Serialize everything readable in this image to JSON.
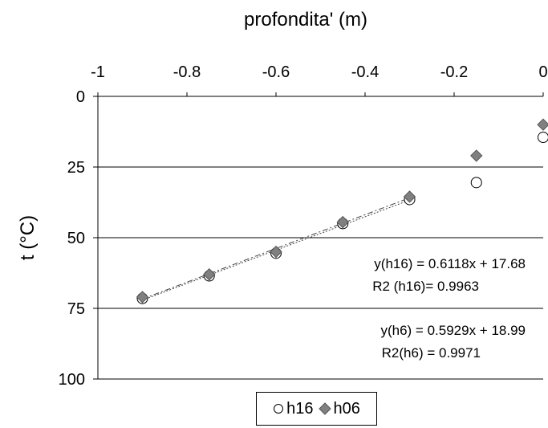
{
  "chart_data": {
    "type": "scatter",
    "title": "",
    "xlabel": "profondita' (m)",
    "ylabel": "t (°C)",
    "xlim": [
      -1,
      0
    ],
    "ylim": [
      0,
      100
    ],
    "y_inverted": true,
    "x_axis_position": "top",
    "x_ticks": [
      "-1",
      "-0.8",
      "-0.6",
      "-0.4",
      "-0.2",
      "0"
    ],
    "y_ticks": [
      "0",
      "25",
      "50",
      "75",
      "100"
    ],
    "grid": "horizontal",
    "legend_position": "bottom",
    "series": [
      {
        "name": "h16",
        "marker": "circle-open",
        "color": "#000000",
        "x": [
          -0.9,
          -0.75,
          -0.6,
          -0.45,
          -0.3,
          -0.15,
          0
        ],
        "y": [
          71.5,
          63.5,
          55.5,
          45,
          36.5,
          30.5,
          14.5
        ]
      },
      {
        "name": "h06",
        "marker": "diamond",
        "color": "#808080",
        "x": [
          -0.9,
          -0.75,
          -0.6,
          -0.45,
          -0.3,
          -0.15,
          0
        ],
        "y": [
          71,
          63,
          55,
          44.5,
          35.5,
          21,
          10
        ]
      }
    ],
    "trendlines": [
      {
        "series": "h16",
        "equation": "y(h16) = 0.6118x + 17.68",
        "r2": "R2 (h16)= 0.9963",
        "slope": 0.6118,
        "intercept": 17.68
      },
      {
        "series": "h06",
        "equation": "y(h6) = 0.5929x + 18.99",
        "r2": "R2(h6) = 0.9971",
        "slope": 0.5929,
        "intercept": 18.99
      }
    ]
  }
}
